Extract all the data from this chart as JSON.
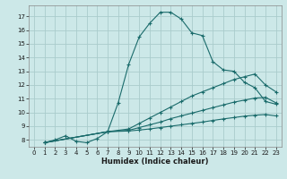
{
  "xlabel": "Humidex (Indice chaleur)",
  "bg_color": "#cce8e8",
  "grid_color": "#aacccc",
  "line_color": "#1a6b6b",
  "xlim": [
    -0.5,
    23.5
  ],
  "ylim": [
    7.5,
    17.8
  ],
  "xticks": [
    0,
    1,
    2,
    3,
    4,
    5,
    6,
    7,
    8,
    9,
    10,
    11,
    12,
    13,
    14,
    15,
    16,
    17,
    18,
    19,
    20,
    21,
    22,
    23
  ],
  "yticks": [
    8,
    9,
    10,
    11,
    12,
    13,
    14,
    15,
    16,
    17
  ],
  "curve1_x": [
    1,
    2,
    3,
    4,
    5,
    6,
    7,
    8,
    9,
    10,
    11,
    12,
    13,
    14,
    15,
    16,
    17,
    18,
    19,
    20,
    21,
    22,
    23
  ],
  "curve1_y": [
    7.8,
    8.0,
    8.3,
    7.9,
    7.8,
    8.1,
    8.6,
    10.7,
    13.5,
    15.5,
    16.5,
    17.3,
    17.3,
    16.8,
    15.8,
    15.6,
    13.7,
    13.1,
    13.0,
    12.2,
    11.8,
    10.8,
    10.6
  ],
  "curve2_x": [
    1,
    7,
    9,
    10,
    11,
    12,
    13,
    14,
    15,
    16,
    17,
    18,
    19,
    20,
    21,
    22,
    23
  ],
  "curve2_y": [
    7.8,
    8.6,
    8.8,
    9.2,
    9.6,
    10.0,
    10.4,
    10.8,
    11.2,
    11.5,
    11.8,
    12.1,
    12.4,
    12.6,
    12.8,
    12.0,
    11.5
  ],
  "curve3_x": [
    1,
    7,
    9,
    10,
    11,
    12,
    13,
    14,
    15,
    16,
    17,
    18,
    19,
    20,
    21,
    22,
    23
  ],
  "curve3_y": [
    7.8,
    8.6,
    8.7,
    8.9,
    9.1,
    9.3,
    9.55,
    9.75,
    9.95,
    10.15,
    10.35,
    10.55,
    10.75,
    10.9,
    11.05,
    11.1,
    10.7
  ],
  "curve4_x": [
    1,
    7,
    9,
    10,
    11,
    12,
    13,
    14,
    15,
    16,
    17,
    18,
    19,
    20,
    21,
    22,
    23
  ],
  "curve4_y": [
    7.8,
    8.6,
    8.65,
    8.72,
    8.8,
    8.9,
    9.0,
    9.1,
    9.2,
    9.3,
    9.42,
    9.53,
    9.63,
    9.73,
    9.8,
    9.85,
    9.75
  ]
}
